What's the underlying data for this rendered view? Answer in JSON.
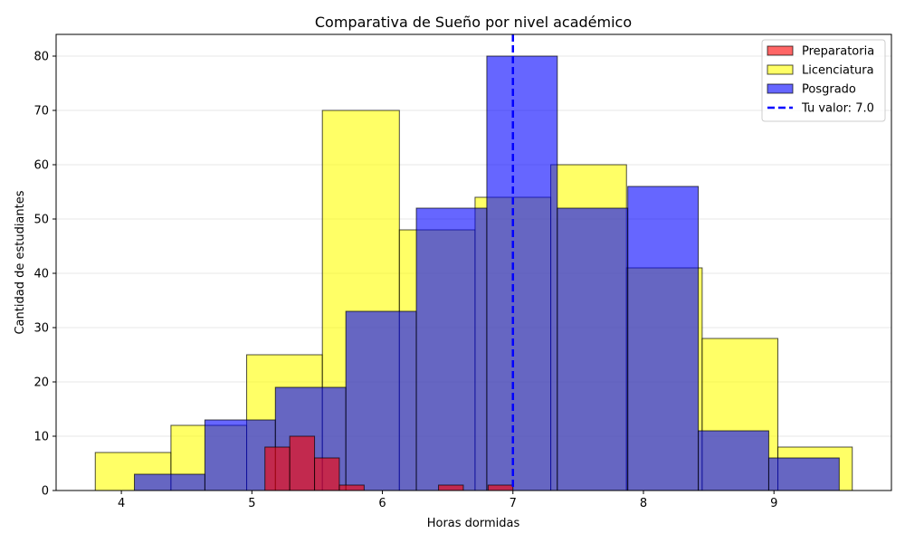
{
  "chart_data": {
    "type": "bar",
    "title": "Comparativa de Sueño por nivel académico",
    "xlabel": "Horas dormidas",
    "ylabel": "Cantidad de estudiantes",
    "xlim": [
      3.5,
      9.9
    ],
    "ylim": [
      0,
      84
    ],
    "xticks": [
      4,
      5,
      6,
      7,
      8,
      9
    ],
    "yticks": [
      0,
      10,
      20,
      30,
      40,
      50,
      60,
      70,
      80
    ],
    "grid": "y",
    "legend_position": "top-right",
    "series": [
      {
        "name": "Licenciatura",
        "color": "#ffff00",
        "opacity": 0.6,
        "bins": [
          {
            "x0": 3.8,
            "x1": 4.38,
            "y": 7
          },
          {
            "x0": 4.38,
            "x1": 4.96,
            "y": 12
          },
          {
            "x0": 4.96,
            "x1": 5.54,
            "y": 25
          },
          {
            "x0": 5.54,
            "x1": 6.13,
            "y": 70
          },
          {
            "x0": 6.13,
            "x1": 6.71,
            "y": 48
          },
          {
            "x0": 6.71,
            "x1": 7.29,
            "y": 54
          },
          {
            "x0": 7.29,
            "x1": 7.87,
            "y": 60
          },
          {
            "x0": 7.87,
            "x1": 8.45,
            "y": 41
          },
          {
            "x0": 8.45,
            "x1": 9.03,
            "y": 28
          },
          {
            "x0": 9.03,
            "x1": 9.6,
            "y": 8
          }
        ]
      },
      {
        "name": "Posgrado",
        "color": "#0000ff",
        "opacity": 0.6,
        "bins": [
          {
            "x0": 4.1,
            "x1": 4.64,
            "y": 3
          },
          {
            "x0": 4.64,
            "x1": 5.18,
            "y": 13
          },
          {
            "x0": 5.18,
            "x1": 5.72,
            "y": 19
          },
          {
            "x0": 5.72,
            "x1": 6.26,
            "y": 33
          },
          {
            "x0": 6.26,
            "x1": 6.8,
            "y": 52
          },
          {
            "x0": 6.8,
            "x1": 7.34,
            "y": 80
          },
          {
            "x0": 7.34,
            "x1": 7.88,
            "y": 52
          },
          {
            "x0": 7.88,
            "x1": 8.42,
            "y": 56
          },
          {
            "x0": 8.42,
            "x1": 8.96,
            "y": 11
          },
          {
            "x0": 8.96,
            "x1": 9.5,
            "y": 6
          }
        ]
      },
      {
        "name": "Preparatoria",
        "color": "#ff0000",
        "opacity": 0.6,
        "bins": [
          {
            "x0": 5.1,
            "x1": 5.29,
            "y": 8
          },
          {
            "x0": 5.29,
            "x1": 5.48,
            "y": 10
          },
          {
            "x0": 5.48,
            "x1": 5.67,
            "y": 6
          },
          {
            "x0": 5.67,
            "x1": 5.86,
            "y": 1
          },
          {
            "x0": 6.43,
            "x1": 6.62,
            "y": 1
          },
          {
            "x0": 6.81,
            "x1": 7.0,
            "y": 1
          }
        ]
      }
    ],
    "reference_line": {
      "label": "Tu valor: 7.0",
      "x": 7.0,
      "color": "#0000ff"
    },
    "legend_order": [
      "Preparatoria",
      "Licenciatura",
      "Posgrado"
    ]
  }
}
